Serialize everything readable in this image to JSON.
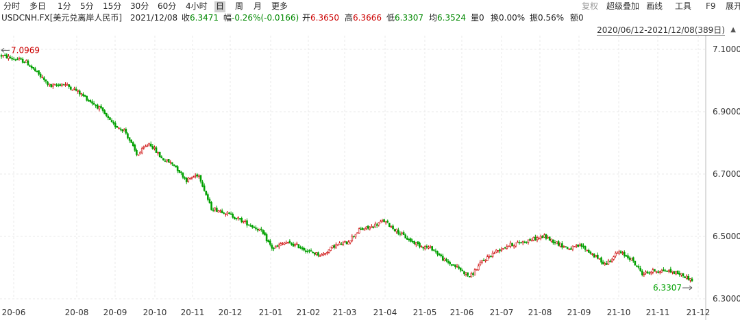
{
  "toolbar": {
    "periods": [
      "分时",
      "多日",
      "1分",
      "5分",
      "15分",
      "30分",
      "60分",
      "4小时",
      "日",
      "周",
      "月",
      "更多"
    ],
    "active_period": "日",
    "right_items": [
      "复权",
      "超级叠加",
      "画线",
      "工具",
      "F9",
      "展开"
    ]
  },
  "quote": {
    "symbol": "USDCNH.FX[美元兑离岸人民币]",
    "date": "2021/12/08",
    "close_label": "收",
    "close": "6.3471",
    "change_label": "幅",
    "change": "-0.26%(-0.0166)",
    "open_label": "开",
    "open": "6.3650",
    "high_label": "高",
    "high": "6.3666",
    "low_label": "低",
    "low": "6.3307",
    "avg_label": "均",
    "avg": "6.3524",
    "volume_label": "量",
    "volume": "0",
    "turnover_label": "换",
    "turnover": "0.00%",
    "amplitude_label": "振",
    "amplitude": "0.56%",
    "amount_label": "额",
    "amount": "0"
  },
  "range": {
    "label": "2020/06/12-2021/12/08(389日)"
  },
  "colors": {
    "up": "#cc0000",
    "down": "#00a000",
    "grid": "#e8e8e8",
    "axis_text": "#333333"
  },
  "chart_data": {
    "type": "candlestick",
    "date_range": "2020/06/12-2021/12/08",
    "trading_days": 389,
    "y_axis": {
      "labels": [
        "7.1000",
        "6.9000",
        "6.7000",
        "6.5000",
        "6.3000"
      ],
      "ylim": [
        6.3,
        7.1
      ]
    },
    "x_axis": {
      "labels": [
        "20-06",
        "20-08",
        "20-09",
        "20-10",
        "20-11",
        "20-12",
        "21-01",
        "21-02",
        "21-03",
        "21-04",
        "21-05",
        "21-06",
        "21-07",
        "21-08",
        "21-09",
        "21-10",
        "21-11",
        "21-12"
      ]
    },
    "period_high": {
      "label": "7.0969",
      "value": 7.0969
    },
    "period_low": {
      "label": "6.3307",
      "value": 6.3307
    },
    "approx_close_path": [
      7.08,
      7.07,
      7.06,
      7.02,
      6.98,
      6.99,
      6.97,
      6.94,
      6.91,
      6.86,
      6.84,
      6.76,
      6.8,
      6.75,
      6.73,
      6.68,
      6.7,
      6.59,
      6.58,
      6.56,
      6.54,
      6.52,
      6.46,
      6.48,
      6.47,
      6.45,
      6.44,
      6.47,
      6.48,
      6.52,
      6.53,
      6.55,
      6.52,
      6.49,
      6.47,
      6.46,
      6.42,
      6.4,
      6.37,
      6.42,
      6.45,
      6.47,
      6.48,
      6.49,
      6.5,
      6.48,
      6.46,
      6.47,
      6.44,
      6.41,
      6.45,
      6.43,
      6.38,
      6.39,
      6.39,
      6.38,
      6.36
    ]
  }
}
